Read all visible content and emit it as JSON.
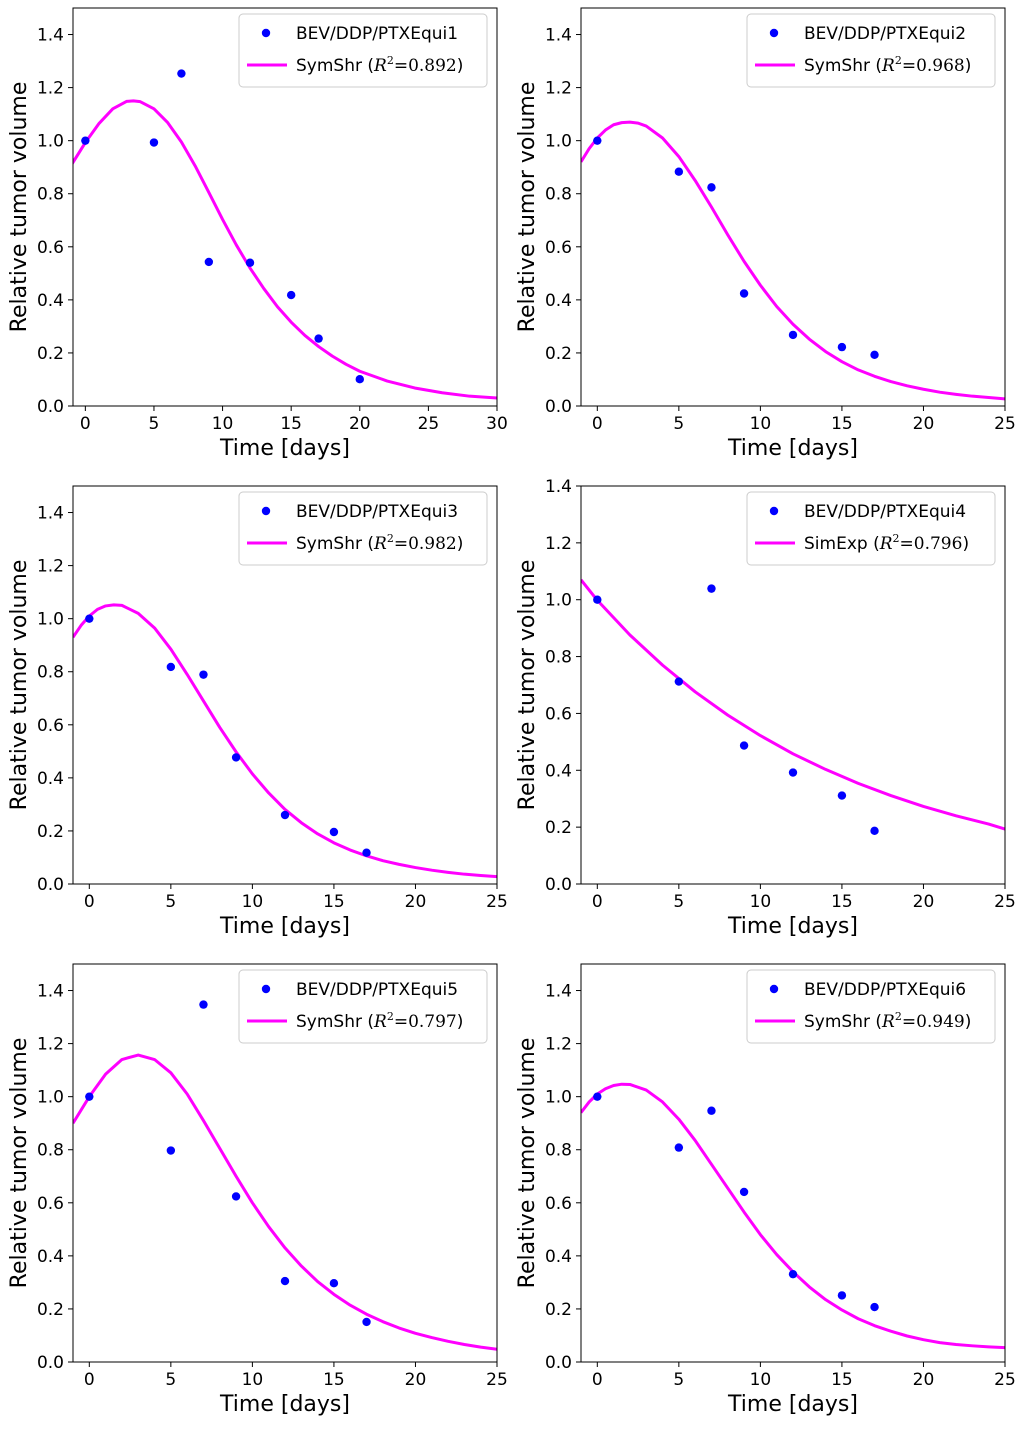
{
  "colors": {
    "marker": "#0000ff",
    "fit": "#ff00ff",
    "axis": "#000000",
    "legend_border": "#cccccc"
  },
  "shared": {
    "xlabel": "Time [days]",
    "ylabel": "Relative tumor volume",
    "r2_symbol": "R",
    "r2_exponent": "2",
    "r2_equals": "="
  },
  "chart_data": [
    {
      "type": "scatter+line",
      "series": [
        {
          "name": "BEV/DDP/PTXEqui1",
          "kind": "scatter",
          "x": [
            0,
            5,
            7,
            9,
            12,
            15,
            17,
            20
          ],
          "y": [
            1.0,
            0.993,
            1.253,
            0.543,
            0.54,
            0.418,
            0.254,
            0.101
          ]
        },
        {
          "name": "SymShr",
          "kind": "line",
          "r2": "0.892",
          "x": [
            -1,
            0,
            1,
            2,
            3,
            3.5,
            4,
            5,
            6,
            7,
            8,
            9,
            10,
            11,
            12,
            13,
            14,
            15,
            16,
            17,
            18,
            19,
            20,
            22,
            24,
            26,
            28,
            30
          ],
          "y": [
            0.91,
            0.993,
            1.065,
            1.12,
            1.148,
            1.15,
            1.147,
            1.12,
            1.068,
            0.995,
            0.905,
            0.805,
            0.703,
            0.607,
            0.52,
            0.443,
            0.374,
            0.316,
            0.266,
            0.224,
            0.188,
            0.157,
            0.131,
            0.094,
            0.068,
            0.05,
            0.037,
            0.03
          ]
        }
      ],
      "xlim": [
        -0.9,
        30
      ],
      "ylim": [
        0,
        1.5
      ],
      "xticks": [
        0,
        5,
        10,
        15,
        20,
        25,
        30
      ],
      "yticks": [
        0.0,
        0.2,
        0.4,
        0.6,
        0.8,
        1.0,
        1.2,
        1.4
      ],
      "xlabel": "Time [days]",
      "ylabel": "Relative tumor volume",
      "legend": "upper right"
    },
    {
      "type": "scatter+line",
      "series": [
        {
          "name": "BEV/DDP/PTXEqui2",
          "kind": "scatter",
          "x": [
            0,
            5,
            7,
            9,
            12,
            15,
            17
          ],
          "y": [
            1.0,
            0.883,
            0.824,
            0.424,
            0.268,
            0.222,
            0.193
          ]
        },
        {
          "name": "SymShr",
          "kind": "line",
          "r2": "0.968",
          "x": [
            -1,
            -0.5,
            0,
            0.5,
            1,
            1.5,
            2,
            2.5,
            3,
            4,
            5,
            6,
            7,
            8,
            9,
            10,
            11,
            12,
            13,
            14,
            15,
            16,
            17,
            18,
            19,
            20,
            21,
            22,
            23,
            24,
            25
          ],
          "y": [
            0.92,
            0.97,
            1.01,
            1.04,
            1.06,
            1.068,
            1.07,
            1.066,
            1.055,
            1.01,
            0.94,
            0.85,
            0.75,
            0.645,
            0.545,
            0.455,
            0.375,
            0.308,
            0.252,
            0.205,
            0.167,
            0.136,
            0.112,
            0.092,
            0.076,
            0.063,
            0.052,
            0.044,
            0.037,
            0.032,
            0.027
          ]
        }
      ],
      "xlim": [
        -1,
        25
      ],
      "ylim": [
        0,
        1.5
      ],
      "xticks": [
        0,
        5,
        10,
        15,
        20,
        25
      ],
      "yticks": [
        0.0,
        0.2,
        0.4,
        0.6,
        0.8,
        1.0,
        1.2,
        1.4
      ],
      "xlabel": "Time [days]",
      "ylabel": "Relative tumor volume",
      "legend": "upper right"
    },
    {
      "type": "scatter+line",
      "series": [
        {
          "name": "BEV/DDP/PTXEqui3",
          "kind": "scatter",
          "x": [
            0,
            5,
            7,
            9,
            12,
            15,
            17
          ],
          "y": [
            1.0,
            0.818,
            0.789,
            0.477,
            0.26,
            0.196,
            0.118
          ]
        },
        {
          "name": "SymShr",
          "kind": "line",
          "r2": "0.982",
          "x": [
            -1,
            -0.5,
            0,
            0.5,
            1,
            1.5,
            2,
            3,
            4,
            5,
            6,
            7,
            8,
            9,
            10,
            11,
            12,
            13,
            14,
            15,
            16,
            17,
            18,
            19,
            20,
            21,
            22,
            23,
            24,
            25
          ],
          "y": [
            0.93,
            0.975,
            1.01,
            1.035,
            1.048,
            1.052,
            1.05,
            1.02,
            0.965,
            0.885,
            0.79,
            0.69,
            0.59,
            0.498,
            0.415,
            0.343,
            0.281,
            0.231,
            0.189,
            0.155,
            0.128,
            0.106,
            0.088,
            0.074,
            0.062,
            0.052,
            0.044,
            0.037,
            0.032,
            0.028
          ]
        }
      ],
      "xlim": [
        -1,
        25
      ],
      "ylim": [
        0,
        1.5
      ],
      "xticks": [
        0,
        5,
        10,
        15,
        20,
        25
      ],
      "yticks": [
        0.0,
        0.2,
        0.4,
        0.6,
        0.8,
        1.0,
        1.2,
        1.4
      ],
      "xlabel": "Time [days]",
      "ylabel": "Relative tumor volume",
      "legend": "upper right"
    },
    {
      "type": "scatter+line",
      "series": [
        {
          "name": "BEV/DDP/PTXEqui4",
          "kind": "scatter",
          "x": [
            0,
            5,
            7,
            9,
            12,
            15,
            17
          ],
          "y": [
            1.0,
            0.712,
            1.039,
            0.487,
            0.392,
            0.311,
            0.187
          ]
        },
        {
          "name": "SimExp",
          "kind": "line",
          "r2": "0.796",
          "x": [
            -1,
            0,
            2,
            4,
            6,
            8,
            10,
            12,
            14,
            16,
            18,
            20,
            22,
            24,
            25
          ],
          "y": [
            1.07,
            0.998,
            0.876,
            0.77,
            0.676,
            0.594,
            0.522,
            0.458,
            0.403,
            0.354,
            0.311,
            0.273,
            0.24,
            0.211,
            0.193
          ]
        }
      ],
      "xlim": [
        -1,
        25
      ],
      "ylim": [
        0,
        1.4
      ],
      "xticks": [
        0,
        5,
        10,
        15,
        20,
        25
      ],
      "yticks": [
        0.0,
        0.2,
        0.4,
        0.6,
        0.8,
        1.0,
        1.2,
        1.4
      ],
      "xlabel": "Time [days]",
      "ylabel": "Relative tumor volume",
      "legend": "upper right"
    },
    {
      "type": "scatter+line",
      "series": [
        {
          "name": "BEV/DDP/PTXEqui5",
          "kind": "scatter",
          "x": [
            0,
            5,
            7,
            9,
            12,
            15,
            17
          ],
          "y": [
            1.0,
            0.797,
            1.347,
            0.624,
            0.305,
            0.297,
            0.151
          ]
        },
        {
          "name": "SymShr",
          "kind": "line",
          "r2": "0.797",
          "x": [
            -1,
            0,
            1,
            2,
            3,
            4,
            5,
            6,
            7,
            8,
            9,
            10,
            11,
            12,
            13,
            14,
            15,
            16,
            17,
            18,
            19,
            20,
            21,
            22,
            23,
            24,
            25
          ],
          "y": [
            0.9,
            1.0,
            1.085,
            1.14,
            1.157,
            1.14,
            1.09,
            1.01,
            0.91,
            0.805,
            0.7,
            0.6,
            0.51,
            0.43,
            0.362,
            0.303,
            0.255,
            0.214,
            0.18,
            0.152,
            0.128,
            0.108,
            0.092,
            0.078,
            0.066,
            0.056,
            0.048
          ]
        }
      ],
      "xlim": [
        -1,
        25
      ],
      "ylim": [
        0,
        1.5
      ],
      "xticks": [
        0,
        5,
        10,
        15,
        20,
        25
      ],
      "yticks": [
        0.0,
        0.2,
        0.4,
        0.6,
        0.8,
        1.0,
        1.2,
        1.4
      ],
      "xlabel": "Time [days]",
      "ylabel": "Relative tumor volume",
      "legend": "upper right"
    },
    {
      "type": "scatter+line",
      "series": [
        {
          "name": "BEV/DDP/PTXEqui6",
          "kind": "scatter",
          "x": [
            0,
            5,
            7,
            9,
            12,
            15,
            17
          ],
          "y": [
            1.0,
            0.808,
            0.947,
            0.641,
            0.331,
            0.251,
            0.207
          ]
        },
        {
          "name": "SymShr",
          "kind": "line",
          "r2": "0.949",
          "x": [
            -1,
            -0.5,
            0,
            0.5,
            1,
            1.5,
            2,
            3,
            4,
            5,
            6,
            7,
            8,
            9,
            10,
            11,
            12,
            13,
            14,
            15,
            16,
            17,
            18,
            19,
            20,
            21,
            22,
            23,
            24,
            25
          ],
          "y": [
            0.94,
            0.98,
            1.01,
            1.03,
            1.042,
            1.047,
            1.046,
            1.025,
            0.98,
            0.915,
            0.835,
            0.745,
            0.655,
            0.565,
            0.48,
            0.405,
            0.34,
            0.283,
            0.235,
            0.196,
            0.163,
            0.137,
            0.116,
            0.098,
            0.084,
            0.073,
            0.066,
            0.061,
            0.057,
            0.054
          ]
        }
      ],
      "xlim": [
        -1,
        25
      ],
      "ylim": [
        0,
        1.5
      ],
      "xticks": [
        0,
        5,
        10,
        15,
        20,
        25
      ],
      "yticks": [
        0.0,
        0.2,
        0.4,
        0.6,
        0.8,
        1.0,
        1.2,
        1.4
      ],
      "xlabel": "Time [days]",
      "ylabel": "Relative tumor volume",
      "legend": "upper right"
    }
  ]
}
